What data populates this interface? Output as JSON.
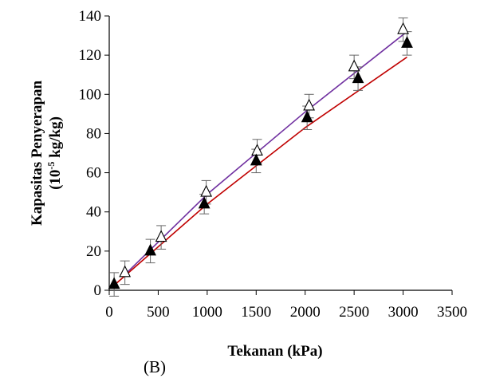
{
  "panel_label": "(B)",
  "chart_data": {
    "type": "scatter",
    "xlabel": "Tekanan (kPa)",
    "ylabel_line1": "Kapasitas Penyerapan",
    "ylabel_line2_pre": "(10",
    "ylabel_line2_sup": "-5",
    "ylabel_line2_post": " kg/kg)",
    "xlim": [
      0,
      3500
    ],
    "ylim": [
      0,
      140
    ],
    "x_ticks": [
      "0",
      "500",
      "1000",
      "1500",
      "2000",
      "2500",
      "3000",
      "3500"
    ],
    "y_ticks": [
      "0",
      "20",
      "40",
      "60",
      "80",
      "100",
      "120",
      "140"
    ],
    "x_tick_values": [
      0,
      500,
      1000,
      1500,
      2000,
      2500,
      3000,
      3500
    ],
    "y_tick_values": [
      0,
      20,
      40,
      60,
      80,
      100,
      120,
      140
    ],
    "series": [
      {
        "marker": "open-triangle",
        "color": "#000000",
        "points": [
          {
            "x": 160,
            "y": 9,
            "err": 6
          },
          {
            "x": 530,
            "y": 27,
            "err": 6
          },
          {
            "x": 990,
            "y": 50,
            "err": 6
          },
          {
            "x": 1510,
            "y": 71,
            "err": 6
          },
          {
            "x": 2040,
            "y": 94,
            "err": 6
          },
          {
            "x": 2500,
            "y": 114,
            "err": 6
          },
          {
            "x": 3000,
            "y": 133,
            "err": 6
          }
        ],
        "fit_color": "#7030A0",
        "fit": [
          {
            "x": 160,
            "y": 8
          },
          {
            "x": 1000,
            "y": 49
          },
          {
            "x": 2000,
            "y": 91
          },
          {
            "x": 3040,
            "y": 132
          }
        ]
      },
      {
        "marker": "filled-triangle",
        "color": "#000000",
        "points": [
          {
            "x": 50,
            "y": 3,
            "err": 6
          },
          {
            "x": 420,
            "y": 20,
            "err": 6
          },
          {
            "x": 970,
            "y": 44,
            "err": 5
          },
          {
            "x": 1500,
            "y": 66,
            "err": 6
          },
          {
            "x": 2020,
            "y": 88,
            "err": 6
          },
          {
            "x": 2540,
            "y": 108,
            "err": 6
          },
          {
            "x": 3040,
            "y": 126,
            "err": 6
          }
        ],
        "fit_color": "#C00000",
        "fit": [
          {
            "x": 60,
            "y": 3
          },
          {
            "x": 1000,
            "y": 44
          },
          {
            "x": 2000,
            "y": 83
          },
          {
            "x": 3040,
            "y": 119
          }
        ]
      }
    ]
  }
}
